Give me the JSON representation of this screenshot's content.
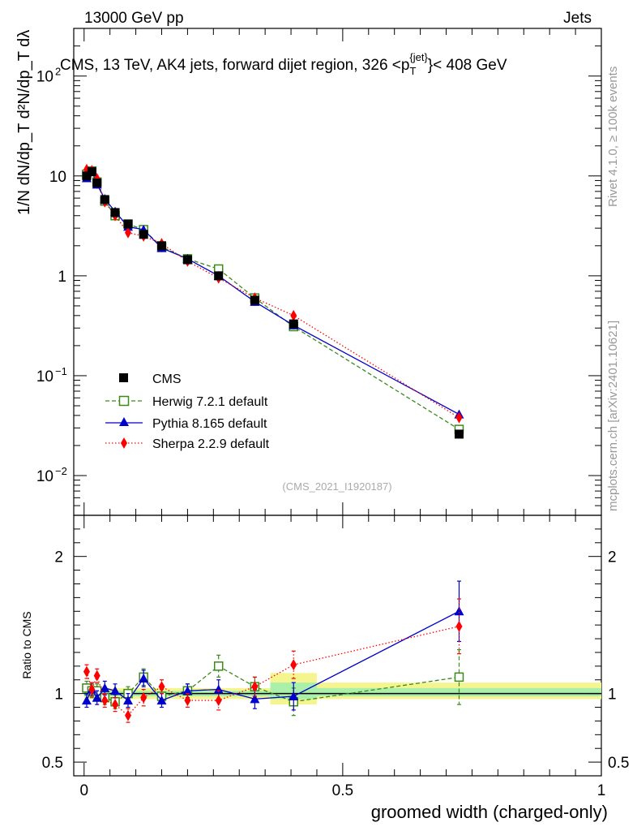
{
  "header": {
    "left": "13000 GeV pp",
    "right": "Jets",
    "title": "CMS, 13 TeV, AK4 jets, forward dijet region, 326 <p",
    "title_sub": "T",
    "title_sup": "{jet}",
    "title_end": "}< 408 GeV",
    "ylabel_main": "1/N dN/dp_T d²N/dp_T dλ",
    "side_rivet": "Rivet 4.1.0, ≥ 100k events",
    "side_mcplots": "mcplots.cern.ch [arXiv:2401.10621]",
    "analysis_id": "(CMS_2021_I1920187)"
  },
  "colors": {
    "cms": "#000000",
    "herwig": "#3a8a1a",
    "pythia": "#0000cc",
    "sherpa": "#ff0000",
    "band_inner": "#aaf0aa",
    "band_outer": "#f5f590"
  },
  "chart_data": [
    {
      "type": "scatter",
      "name": "main",
      "scale": "log",
      "xlim": [
        -0.02,
        1.0
      ],
      "ylim": [
        0.004,
        300
      ],
      "x_ticks": [
        0,
        0.5,
        1
      ],
      "y_ticks": [
        {
          "v": 0.01,
          "label": "10",
          "exp": "−2"
        },
        {
          "v": 0.1,
          "label": "10",
          "exp": "−1"
        },
        {
          "v": 1,
          "label": "1",
          "exp": ""
        },
        {
          "v": 10,
          "label": "10",
          "exp": ""
        },
        {
          "v": 100,
          "label": "10",
          "exp": "2"
        }
      ],
      "x": [
        0.005,
        0.015,
        0.025,
        0.04,
        0.06,
        0.085,
        0.115,
        0.15,
        0.2,
        0.26,
        0.33,
        0.405,
        0.725
      ],
      "series": [
        {
          "name": "CMS",
          "legend": "CMS",
          "marker": "square",
          "values": [
            10.0,
            11.0,
            8.5,
            5.8,
            4.3,
            3.3,
            2.6,
            2.0,
            1.45,
            1.0,
            0.57,
            0.33,
            0.026
          ]
        },
        {
          "name": "Herwig",
          "legend": "Herwig 7.2.1 default",
          "marker": "open-square",
          "values": [
            10.4,
            11.2,
            8.7,
            5.6,
            4.0,
            3.3,
            2.9,
            1.95,
            1.48,
            1.17,
            0.6,
            0.31,
            0.029
          ]
        },
        {
          "name": "Pythia",
          "legend": "Pythia 8.165 default",
          "marker": "triangle",
          "values": [
            9.5,
            11.3,
            8.2,
            5.9,
            4.4,
            3.1,
            2.9,
            1.9,
            1.48,
            1.0,
            0.55,
            0.32,
            0.041
          ]
        },
        {
          "name": "Sherpa",
          "legend": "Sherpa 2.2.9 default",
          "marker": "diamond",
          "values": [
            11.6,
            11.3,
            9.4,
            5.5,
            4.0,
            2.7,
            2.5,
            2.1,
            1.4,
            0.95,
            0.6,
            0.4,
            0.038
          ]
        }
      ]
    },
    {
      "type": "scatter",
      "name": "ratio",
      "ylabel": "Ratio to CMS",
      "xlabel": "groomed width (charged-only)",
      "xlim": [
        -0.02,
        1.0
      ],
      "ylim": [
        0.4,
        2.3
      ],
      "y_ticks": [
        {
          "v": 0.5,
          "label": "0.5"
        },
        {
          "v": 1,
          "label": "1"
        },
        {
          "v": 2,
          "label": "2"
        }
      ],
      "x_ticks": [
        {
          "v": 0,
          "label": "0"
        },
        {
          "v": 0.5,
          "label": "0.5"
        },
        {
          "v": 1,
          "label": "1"
        }
      ],
      "x": [
        0.005,
        0.015,
        0.025,
        0.04,
        0.06,
        0.085,
        0.115,
        0.15,
        0.2,
        0.26,
        0.33,
        0.405,
        0.725
      ],
      "bands": [
        {
          "x0": 0.0,
          "x1": 0.36,
          "outer": [
            0.96,
            1.04
          ],
          "inner": [
            0.98,
            1.02
          ]
        },
        {
          "x0": 0.36,
          "x1": 0.45,
          "outer": [
            0.92,
            1.15
          ],
          "inner": [
            0.96,
            1.08
          ]
        },
        {
          "x0": 0.45,
          "x1": 1.0,
          "outer": [
            0.96,
            1.08
          ],
          "inner": [
            0.98,
            1.04
          ]
        }
      ],
      "series": [
        {
          "name": "Herwig",
          "marker": "open-square",
          "values": [
            1.04,
            1.02,
            1.02,
            0.97,
            0.94,
            1.0,
            1.12,
            0.98,
            1.02,
            1.2,
            1.05,
            0.94,
            1.12
          ],
          "err": [
            0.05,
            0.05,
            0.05,
            0.05,
            0.05,
            0.05,
            0.06,
            0.05,
            0.05,
            0.08,
            0.07,
            0.1,
            0.2
          ]
        },
        {
          "name": "Pythia",
          "marker": "triangle",
          "values": [
            0.95,
            1.03,
            0.97,
            1.04,
            1.02,
            0.95,
            1.11,
            0.95,
            1.02,
            1.03,
            0.96,
            0.98,
            1.6
          ],
          "err": [
            0.05,
            0.05,
            0.05,
            0.05,
            0.05,
            0.05,
            0.06,
            0.05,
            0.05,
            0.07,
            0.07,
            0.1,
            0.22
          ]
        },
        {
          "name": "Sherpa",
          "marker": "diamond",
          "values": [
            1.16,
            1.03,
            1.13,
            0.95,
            0.92,
            0.84,
            0.97,
            1.05,
            0.95,
            0.95,
            1.05,
            1.21,
            1.49
          ],
          "err": [
            0.05,
            0.05,
            0.05,
            0.05,
            0.05,
            0.05,
            0.06,
            0.05,
            0.05,
            0.07,
            0.07,
            0.1,
            0.2
          ]
        }
      ]
    }
  ]
}
